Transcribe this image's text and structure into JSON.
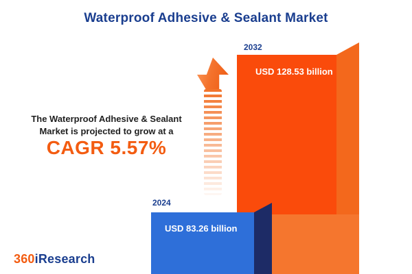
{
  "title": "Waterproof Adhesive & Sealant Market",
  "description": {
    "line1": "The Waterproof Adhesive & Sealant",
    "line2": "Market is projected to grow at a",
    "cagr_label": "CAGR 5.57%"
  },
  "logo": {
    "prefix": "360",
    "suffix": "iResearch"
  },
  "icons": {
    "growth_arrow": "arrow-up-icon"
  },
  "chart_data": {
    "type": "bar",
    "title": "Waterproof Adhesive & Sealant Market",
    "categories": [
      "2024",
      "2032"
    ],
    "series": [
      {
        "name": "Market size (USD billion)",
        "values": [
          83.26,
          128.53
        ]
      }
    ],
    "value_labels": [
      "USD 83.26 billion",
      "USD 128.53 billion"
    ],
    "unit": "USD billion",
    "cagr_percent": 5.57,
    "legend": "none",
    "grid": false,
    "colors": {
      "bar_2024_front": "#2e6fd9",
      "bar_2024_side": "#1d2b66",
      "bar_2032_front": "#fa4b0b",
      "bar_2032_side": "#f3681c",
      "accent_orange": "#f35c11",
      "navy": "#1a3e8f"
    }
  }
}
